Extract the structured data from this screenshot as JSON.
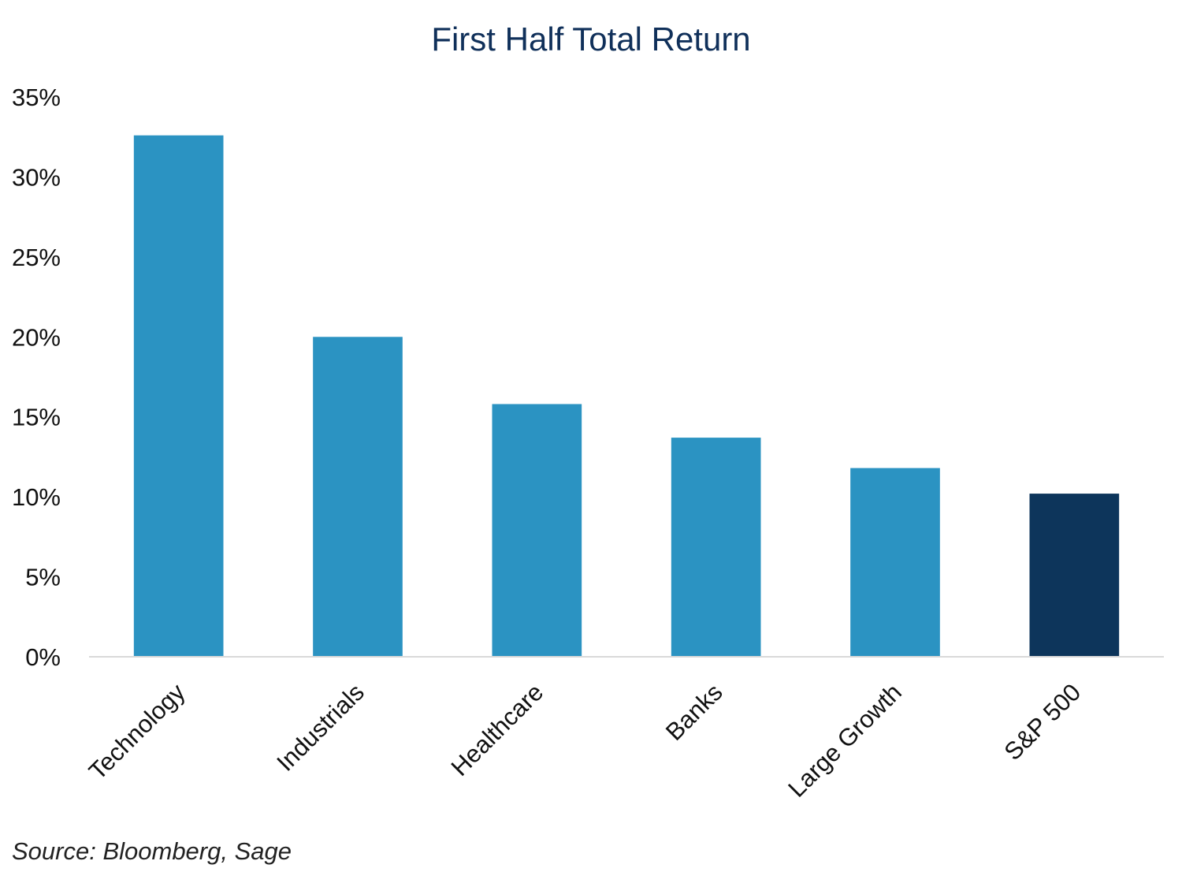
{
  "chart_data": {
    "type": "bar",
    "title": "First Half Total Return",
    "categories": [
      "Technology",
      "Industrials",
      "Healthcare",
      "Banks",
      "Large Growth",
      "S&P 500"
    ],
    "values": [
      32.6,
      20.0,
      15.8,
      13.7,
      11.8,
      10.2
    ],
    "ytick_labels": [
      "0%",
      "5%",
      "10%",
      "15%",
      "20%",
      "25%",
      "30%",
      "35%"
    ],
    "ytick_values": [
      0,
      5,
      10,
      15,
      20,
      25,
      30,
      35
    ],
    "ylim": [
      0,
      35
    ],
    "xlabel": "",
    "ylabel": "",
    "grid": false,
    "legend": "none",
    "bar_colors": [
      "#2b93c2",
      "#2b93c2",
      "#2b93c2",
      "#2b93c2",
      "#2b93c2",
      "#0d355b"
    ],
    "axis_color": "#d9d9d9"
  },
  "footer": {
    "source": "Source: Bloomberg, Sage"
  }
}
